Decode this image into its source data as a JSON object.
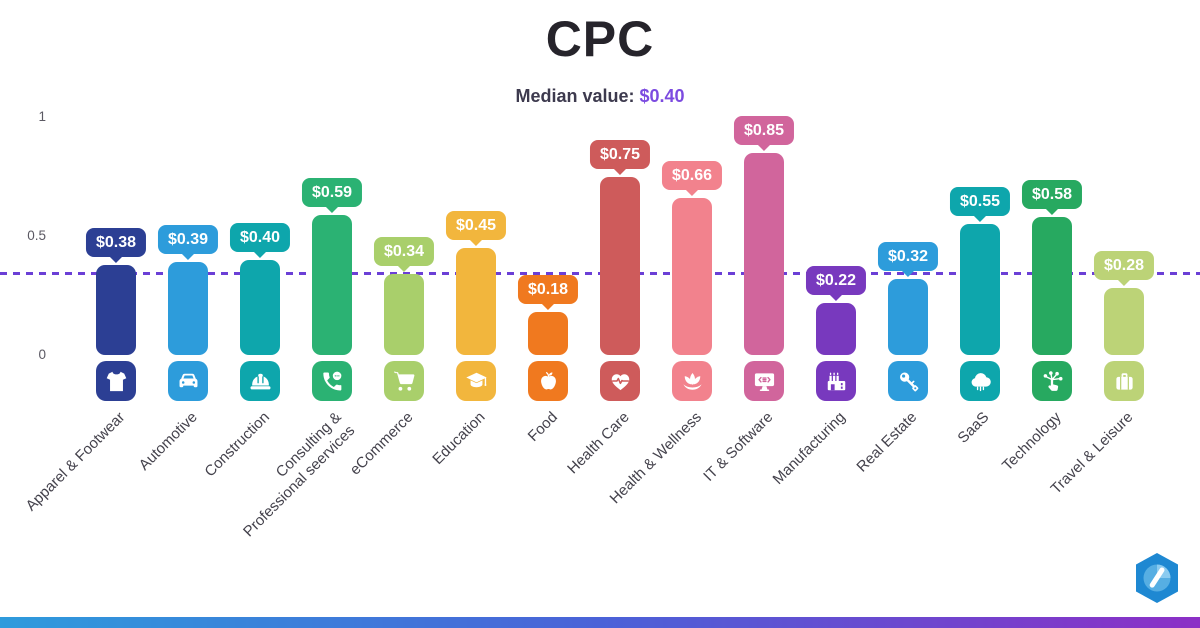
{
  "title": "CPC",
  "subtitle": {
    "label": "Median value:",
    "value": "$0.40"
  },
  "colors": {
    "background": "#FFFFFF",
    "title": "#26242B",
    "subtitle": "#3D3A4E",
    "median_value_text": "#7C4BE0",
    "median_line": "#6B3FD6",
    "tick_text": "#5B5963",
    "category_text": "#44424C",
    "footer_gradient": [
      "#2E9BDC",
      "#4A62D8",
      "#8C2FC6"
    ],
    "logo_blue": "#1E88D2"
  },
  "chart_data": {
    "type": "bar",
    "title": "CPC",
    "median": {
      "label": "Median value:",
      "display": "$0.40",
      "value": 0.4
    },
    "ylim": [
      0,
      1
    ],
    "grid": false,
    "legend": false,
    "yticks": [
      {
        "value": 0,
        "label": "0"
      },
      {
        "value": 0.5,
        "label": "0.5"
      },
      {
        "value": 1,
        "label": "1"
      }
    ],
    "categories": [
      "Apparel & Footwear",
      "Automotive",
      "Construction",
      "Consulting & Professional seervices",
      "eCommerce",
      "Education",
      "Food",
      "Health Care",
      "Health & Wellness",
      "IT & Software",
      "Manufacturing",
      "Real Estate",
      "SaaS",
      "Technology",
      "Travel & Leisure"
    ],
    "category_labels": [
      "Apparel & Footwear",
      "Automotive",
      "Construction",
      "Consulting &\nProfessional seervices",
      "eCommerce",
      "Education",
      "Food",
      "Health Care",
      "Health & Wellness",
      "IT & Software",
      "Manufacturing",
      "Real Estate",
      "SaaS",
      "Technology",
      "Travel & Leisure"
    ],
    "values": [
      0.38,
      0.39,
      0.4,
      0.59,
      0.34,
      0.45,
      0.18,
      0.75,
      0.66,
      0.85,
      0.22,
      0.32,
      0.55,
      0.58,
      0.28
    ],
    "display_values": [
      "$0.38",
      "$0.39",
      "$0.40",
      "$0.59",
      "$0.34",
      "$0.45",
      "$0.18",
      "$0.75",
      "$0.66",
      "$0.85",
      "$0.22",
      "$0.32",
      "$0.55",
      "$0.58",
      "$0.28"
    ],
    "colors": [
      "#2C3F94",
      "#2D9CDB",
      "#0EA6AC",
      "#2BB273",
      "#A9CF6B",
      "#F2B63D",
      "#F0791F",
      "#CE5B5B",
      "#F2828D",
      "#D1659C",
      "#7839BE",
      "#2D9CDB",
      "#0EA6AC",
      "#27A960",
      "#BCD377"
    ],
    "icons": [
      "tshirt-icon",
      "car-icon",
      "hard-hat-icon",
      "phone-chat-icon",
      "shopping-cart-icon",
      "graduation-cap-icon",
      "apple-icon",
      "heart-pulse-icon",
      "lotus-icon",
      "monitor-code-icon",
      "factory-icon",
      "key-icon",
      "cloud-icon",
      "network-click-icon",
      "suitcase-icon"
    ]
  }
}
